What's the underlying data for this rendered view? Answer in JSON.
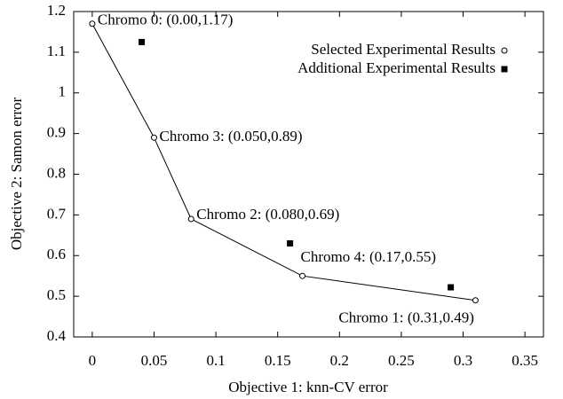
{
  "chart_data": {
    "type": "scatter",
    "xlabel": "Objective 1: knn-CV error",
    "ylabel": "Objective 2: Samon error",
    "xlim": [
      -0.015,
      0.365
    ],
    "xticks": [
      0,
      0.05,
      0.1,
      0.15,
      0.2,
      0.25,
      0.3,
      0.35
    ],
    "ylim": [
      0.4,
      1.2
    ],
    "yticks": [
      0.4,
      0.5,
      0.6,
      0.7,
      0.8,
      0.9,
      1,
      1.1,
      1.2
    ],
    "legend": "upper right",
    "series": [
      {
        "name": "Selected Experimental Results",
        "color": "#000000",
        "marker": "open-circle",
        "line": true,
        "x": [
          0,
          0.05,
          0.08,
          0.17,
          0.31
        ],
        "values": [
          1.17,
          0.89,
          0.69,
          0.55,
          0.49
        ],
        "point_labels": [
          "Chromo 0: (0.00,1.17)",
          "Chromo 3: (0.050,0.89)",
          "Chromo 2: (0.080,0.69)",
          "Chromo 4: (0.17,0.55)",
          "Chromo 1: (0.31,0.49)"
        ]
      },
      {
        "name": "Additional Experimental Results",
        "color": "#000000",
        "marker": "filled-square",
        "line": false,
        "x": [
          0.04,
          0.16,
          0.29
        ],
        "values": [
          1.125,
          0.63,
          0.522
        ]
      }
    ]
  }
}
